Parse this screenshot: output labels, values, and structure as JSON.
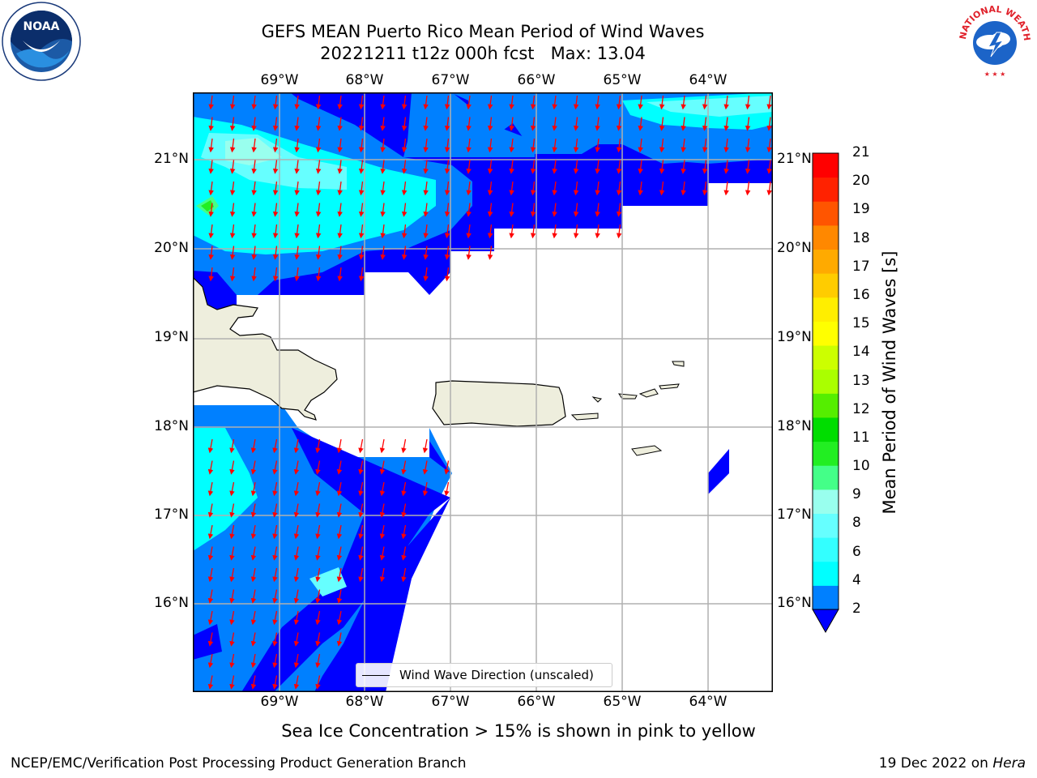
{
  "title_line1": "GEFS MEAN Puerto Rico Mean Period of Wind Waves",
  "title_line2": "20221211 t12z 000h fcst   Max: 13.04",
  "lon_ticks": [
    "69°W",
    "68°W",
    "67°W",
    "66°W",
    "65°W",
    "64°W"
  ],
  "lat_ticks": [
    "21°N",
    "20°N",
    "19°N",
    "18°N",
    "17°N",
    "16°N"
  ],
  "colorbar": {
    "label": "Mean Period of Wind Waves [s]",
    "ticks": [
      "2",
      "4",
      "6",
      "8",
      "9",
      "10",
      "11",
      "12",
      "13",
      "14",
      "15",
      "16",
      "17",
      "18",
      "19",
      "20",
      "21"
    ],
    "colors": [
      "#0080ff",
      "#00ffff",
      "#33ffff",
      "#66ffff",
      "#99ffee",
      "#44ff88",
      "#22ee22",
      "#00dd00",
      "#55ee00",
      "#aaff00",
      "#ccff00",
      "#ffff00",
      "#ffee00",
      "#ffcc00",
      "#ffaa00",
      "#ff8800",
      "#ff5500",
      "#ff2200",
      "#ff0000"
    ],
    "under_color": "#0000ff"
  },
  "legend_label": "Wind Wave Direction (unscaled)",
  "note": "Sea Ice Concentration > 15% is shown in pink to yellow",
  "footer_left": "NCEP/EMC/Verification Post Processing Product Generation Branch",
  "footer_right_prefix": "19 Dec 2022 on",
  "footer_right_host": "Hera",
  "logos": {
    "left": "NOAA",
    "right": "NATIONAL WEATHER SERVICE"
  },
  "colors": {
    "land": "#eeeedd",
    "arrow": "#ff0000",
    "grid": "#b0b0b0",
    "deep_blue": "#0000ff",
    "mid_blue": "#0080ff",
    "cyan": "#00ffff",
    "light_cyan": "#66ffff"
  }
}
